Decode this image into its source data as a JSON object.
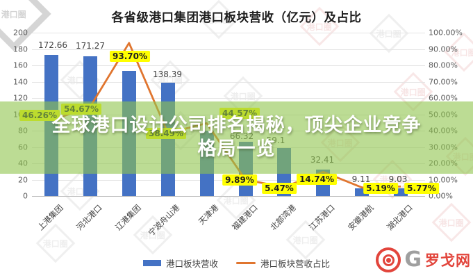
{
  "title": "各省级港口集团港口板块营收（亿元）及占比",
  "banner": {
    "line1": "全球港口设计公司排名揭秘，顶尖企业竞争",
    "line2": "格局一览"
  },
  "legend": [
    {
      "label": "港口板块营收"
    },
    {
      "label": "港口板块营收占比"
    }
  ],
  "axes": {
    "left_ticks": [
      "0",
      "20",
      "40",
      "60",
      "80",
      "100",
      "120",
      "140",
      "160",
      "180",
      "200"
    ],
    "right_ticks": [
      "0.00%",
      "10.00%",
      "20.00%",
      "30.00%",
      "40.00%",
      "50.00%",
      "60.00%",
      "70.00%",
      "80.00%",
      "90.00%",
      "100.00%"
    ]
  },
  "watermark": {
    "text": "港口圈"
  },
  "logo": {
    "g": "G",
    "name": "罗戈网"
  },
  "chart_data": {
    "type": "bar+line",
    "title": "各省级港口集团港口板块营收（亿元）及占比",
    "categories": [
      "上港集团",
      "河北港口",
      "辽港集团",
      "宁波舟山港",
      "天津港",
      "福建港口",
      "北部湾港",
      "江苏港口",
      "安徽港航",
      "湖北港口"
    ],
    "series": [
      {
        "name": "港口板块营收",
        "type": "bar",
        "axis": "left",
        "color": "#4472c4",
        "values": [
          172.66,
          171.27,
          153.5,
          138.39,
          80.0,
          66.32,
          59.1,
          32.41,
          9.11,
          9.03
        ],
        "labels": [
          "172.66",
          "171.27",
          "",
          "138.39",
          "",
          "66.32",
          "59.1",
          "32.41",
          "9.11",
          "9.03"
        ]
      },
      {
        "name": "港口板块营收占比",
        "type": "line",
        "axis": "right",
        "color": "#e0752f",
        "values": [
          46.26,
          54.67,
          93.7,
          38.49,
          44.57,
          9.89,
          5.47,
          14.74,
          5.19,
          5.77
        ],
        "labels": [
          "46.26%",
          "54.67%",
          "93.70%",
          "38.49%",
          "44.57%",
          "9.89%",
          "5.47%",
          "14.74%",
          "5.19%",
          "5.77%"
        ]
      }
    ],
    "ylim_left": [
      0,
      200
    ],
    "ylim_right": [
      0,
      100
    ],
    "grid": true,
    "legend_position": "bottom"
  }
}
